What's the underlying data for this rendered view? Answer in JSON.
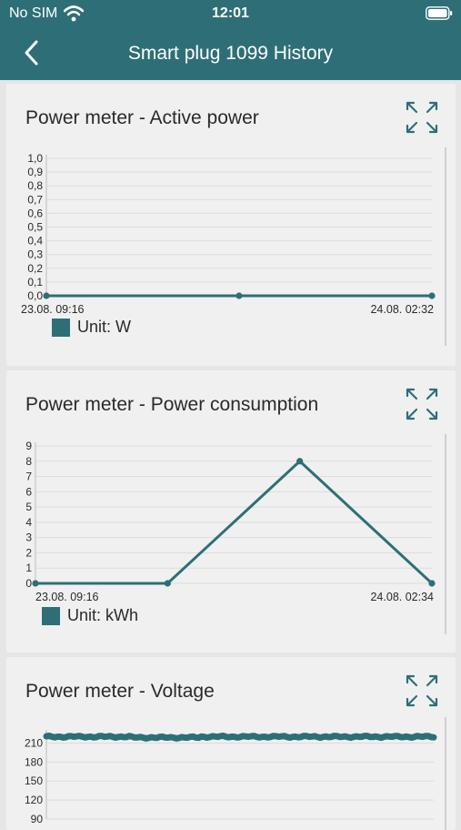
{
  "status": {
    "carrier": "No SIM",
    "time": "12:01"
  },
  "nav": {
    "title": "Smart plug 1099 History"
  },
  "colors": {
    "header": "#2e6f77",
    "series": "#2e6f77",
    "card": "#f0f0f0",
    "background": "#e6e6e6"
  },
  "icons": {
    "back": "chevron-left-icon",
    "expand": "expand-arrows-icon",
    "wifi": "wifi-icon",
    "battery": "battery-icon"
  },
  "cards": [
    {
      "title": "Power meter - Active power",
      "legend": "Unit: W"
    },
    {
      "title": "Power meter - Power consumption",
      "legend": "Unit: kWh"
    },
    {
      "title": "Power meter - Voltage",
      "legend": ""
    }
  ],
  "chart_data": [
    {
      "type": "line",
      "ylim": [
        0,
        1
      ],
      "yticks": [
        "1,0",
        "0,9",
        "0,8",
        "0,7",
        "0,6",
        "0,5",
        "0,4",
        "0,3",
        "0,2",
        "0,1",
        "0,0"
      ],
      "x_labels": {
        "start": "23.08. 09:16",
        "end": "24.08. 02:32"
      },
      "x": [
        0,
        0.5,
        1
      ],
      "series": [
        {
          "values": [
            0,
            0,
            0
          ]
        }
      ],
      "grid": true
    },
    {
      "type": "line",
      "ylim": [
        0,
        9
      ],
      "yticks": [
        "9",
        "8",
        "7",
        "6",
        "5",
        "4",
        "3",
        "2",
        "1",
        "0"
      ],
      "x_labels": {
        "start": "23.08. 09:16",
        "end": "24.08. 02:34"
      },
      "x": [
        0,
        0.3333,
        0.6667,
        1
      ],
      "series": [
        {
          "values": [
            0,
            0,
            8,
            0
          ]
        }
      ],
      "grid": true
    },
    {
      "type": "line",
      "ylim": [
        90,
        225
      ],
      "yticks": [
        "210",
        "180",
        "150",
        "120",
        "90"
      ],
      "x_labels": {
        "start": "",
        "end": ""
      },
      "series": [
        {
          "approx_value": 220
        }
      ],
      "grid": true
    }
  ]
}
